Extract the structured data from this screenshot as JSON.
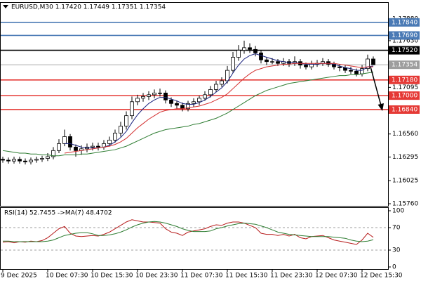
{
  "chart_data": [
    {
      "type": "candlestick",
      "title": "EURUSD,M30  1.17420 1.17449 1.17351 1.17354",
      "categories": [
        "9 Dec 2025",
        null,
        null,
        null,
        null,
        null,
        null,
        null,
        "10 Dec 07:30",
        null,
        null,
        null,
        null,
        null,
        null,
        null,
        "10 Dec 15:30",
        null,
        null,
        null,
        null,
        null,
        null,
        null,
        "10 Dec 23:30",
        null,
        null,
        null,
        null,
        null,
        null,
        null,
        "11 Dec 07:30",
        null,
        null,
        null,
        null,
        null,
        null,
        null,
        "11 Dec 15:30",
        null,
        null,
        null,
        null,
        null,
        null,
        null,
        "11 Dec 23:30",
        null,
        null,
        null,
        null,
        null,
        null,
        null,
        "12 Dec 07:30",
        null,
        null,
        null,
        null,
        null,
        null,
        null,
        "12 Dec 15:30",
        null,
        null
      ],
      "open": [
        1.1627,
        1.1626,
        1.1625,
        1.1627,
        1.1625,
        1.1624,
        1.1626,
        1.1627,
        1.1628,
        1.163,
        1.1637,
        1.1645,
        1.1653,
        1.1641,
        1.1637,
        1.1639,
        1.1641,
        1.1642,
        1.1641,
        1.1645,
        1.1649,
        1.1657,
        1.1665,
        1.1677,
        1.1693,
        1.1697,
        1.1699,
        1.1701,
        1.1703,
        1.1703,
        1.1695,
        1.1691,
        1.1689,
        1.1685,
        1.1691,
        1.1693,
        1.1697,
        1.1701,
        1.1707,
        1.1713,
        1.1717,
        1.1729,
        1.1744,
        1.1752,
        1.1755,
        1.1753,
        1.1749,
        1.1741,
        1.1739,
        1.1739,
        1.1737,
        1.1739,
        1.1737,
        1.1739,
        1.1735,
        1.1733,
        1.1736,
        1.1737,
        1.1739,
        1.1736,
        1.1733,
        1.1732,
        1.1729,
        1.1728,
        1.1725,
        1.1731,
        1.1742
      ],
      "high": [
        1.163,
        1.1629,
        1.163,
        1.163,
        1.1628,
        1.1629,
        1.163,
        1.1631,
        1.1634,
        1.1641,
        1.165,
        1.1661,
        1.1656,
        1.1644,
        1.1643,
        1.1645,
        1.1646,
        1.1646,
        1.1649,
        1.1653,
        1.1661,
        1.167,
        1.1682,
        1.1699,
        1.1701,
        1.1703,
        1.1705,
        1.1707,
        1.1708,
        1.1706,
        1.1698,
        1.1694,
        1.1692,
        1.1694,
        1.1697,
        1.17,
        1.1705,
        1.1711,
        1.1717,
        1.1721,
        1.1734,
        1.175,
        1.1758,
        1.1763,
        1.176,
        1.1757,
        1.1752,
        1.1744,
        1.1743,
        1.1742,
        1.1743,
        1.1742,
        1.1745,
        1.1742,
        1.1738,
        1.174,
        1.1741,
        1.1743,
        1.1742,
        1.1739,
        1.1736,
        1.1735,
        1.1733,
        1.1731,
        1.1735,
        1.1747,
        1.17449
      ],
      "low": [
        1.1623,
        1.1622,
        1.1622,
        1.1622,
        1.1621,
        1.1621,
        1.1623,
        1.1624,
        1.1625,
        1.1627,
        1.1634,
        1.1642,
        1.1637,
        1.163,
        1.1632,
        1.1635,
        1.1637,
        1.1637,
        1.1638,
        1.1642,
        1.1646,
        1.1653,
        1.1661,
        1.1673,
        1.1689,
        1.1693,
        1.1695,
        1.1697,
        1.1699,
        1.1691,
        1.1687,
        1.1685,
        1.1682,
        1.1682,
        1.1687,
        1.1689,
        1.1694,
        1.1698,
        1.1704,
        1.171,
        1.1714,
        1.1726,
        1.174,
        1.1748,
        1.1749,
        1.1745,
        1.1737,
        1.1735,
        1.1736,
        1.1734,
        1.1734,
        1.1733,
        1.1734,
        1.1731,
        1.173,
        1.173,
        1.1733,
        1.1734,
        1.1733,
        1.173,
        1.1728,
        1.1726,
        1.1725,
        1.1722,
        1.1722,
        1.1728,
        1.17351
      ],
      "close": [
        1.1626,
        1.1625,
        1.1627,
        1.1625,
        1.1624,
        1.1626,
        1.1627,
        1.1628,
        1.163,
        1.1637,
        1.1645,
        1.1653,
        1.1641,
        1.1637,
        1.1639,
        1.1641,
        1.1642,
        1.1641,
        1.1645,
        1.1649,
        1.1657,
        1.1665,
        1.1677,
        1.1693,
        1.1697,
        1.1699,
        1.1701,
        1.1703,
        1.1703,
        1.1695,
        1.1691,
        1.1689,
        1.1685,
        1.1691,
        1.1693,
        1.1697,
        1.1701,
        1.1707,
        1.1713,
        1.1717,
        1.1729,
        1.1744,
        1.1752,
        1.1755,
        1.1753,
        1.1749,
        1.1741,
        1.1739,
        1.1739,
        1.1737,
        1.1739,
        1.1737,
        1.1739,
        1.1735,
        1.1733,
        1.1736,
        1.1737,
        1.1739,
        1.1736,
        1.1733,
        1.1732,
        1.1729,
        1.1728,
        1.1725,
        1.1731,
        1.1742,
        1.17354
      ],
      "up_color": "#ffffff",
      "down_color": "#000000",
      "wick_color": "#000000",
      "series": [
        {
          "color": "#1a237e",
          "values": [
            null,
            null,
            null,
            null,
            null,
            null,
            null,
            null,
            null,
            null,
            null,
            1.1645,
            1.1645,
            1.1643,
            1.1641,
            1.164,
            1.164,
            1.164,
            1.1641,
            1.1643,
            1.1647,
            1.1652,
            1.1659,
            1.1669,
            1.1678,
            1.1685,
            1.1691,
            1.1695,
            1.1698,
            1.1698,
            1.1696,
            1.1694,
            1.1691,
            1.169,
            1.169,
            1.1692,
            1.1695,
            1.1699,
            1.1704,
            1.1709,
            1.1716,
            1.1726,
            1.1735,
            1.1742,
            1.1746,
            1.1748,
            1.1746,
            1.1744,
            1.1742,
            1.174,
            1.1739,
            1.1738,
            1.1738,
            1.1737,
            1.1736,
            1.1736,
            1.1736,
            1.1737,
            1.1737,
            1.1736,
            1.1734,
            1.1732,
            1.1731,
            1.1729,
            1.1729,
            1.1733,
            1.1734
          ]
        },
        {
          "color": "#d32f2f",
          "values": [
            null,
            null,
            null,
            null,
            null,
            null,
            null,
            null,
            null,
            null,
            null,
            1.1634,
            1.1635,
            1.1636,
            1.1637,
            1.1638,
            1.1639,
            1.164,
            1.1641,
            1.1642,
            1.1644,
            1.1647,
            1.1651,
            1.1657,
            1.1663,
            1.1668,
            1.1673,
            1.1677,
            1.1681,
            1.1683,
            1.1684,
            1.1685,
            1.1685,
            1.1686,
            1.1687,
            1.1688,
            1.169,
            1.1692,
            1.1695,
            1.1698,
            1.1702,
            1.1708,
            1.1714,
            1.172,
            1.1725,
            1.1729,
            1.1731,
            1.1733,
            1.1734,
            1.1735,
            1.1736,
            1.1736,
            1.1737,
            1.1737,
            1.1737,
            1.1737,
            1.1737,
            1.1737,
            1.1737,
            1.1737,
            1.1736,
            1.1735,
            1.1734,
            1.1733,
            1.1732,
            1.1733,
            1.1733
          ]
        },
        {
          "color": "#2e7d32",
          "values": [
            1.1637,
            1.1636,
            1.1635,
            1.1634,
            1.1634,
            1.1633,
            1.1633,
            1.1632,
            1.1632,
            1.1631,
            1.1631,
            1.1632,
            1.1632,
            1.1632,
            1.1633,
            1.1633,
            1.1634,
            1.1635,
            1.1636,
            1.1637,
            1.1638,
            1.164,
            1.1642,
            1.1645,
            1.1648,
            1.1651,
            1.1654,
            1.1657,
            1.1659,
            1.1661,
            1.1662,
            1.1663,
            1.1664,
            1.1665,
            1.1667,
            1.1668,
            1.167,
            1.1672,
            1.1674,
            1.1677,
            1.168,
            1.1684,
            1.1688,
            1.1692,
            1.1696,
            1.17,
            1.1703,
            1.1706,
            1.1708,
            1.171,
            1.1712,
            1.1714,
            1.1715,
            1.1716,
            1.1717,
            1.1718,
            1.1719,
            1.172,
            1.1721,
            1.1722,
            1.1723,
            1.1723,
            1.1724,
            1.1724,
            1.1725,
            1.1726,
            1.1727
          ]
        }
      ],
      "levels": [
        {
          "value": 1.1784,
          "label": "1.17840",
          "color": "#4a7ab5"
        },
        {
          "value": 1.1769,
          "label": "1.17690",
          "color": "#4a7ab5"
        },
        {
          "value": 1.1752,
          "label": "1.17520",
          "color": "#000000"
        },
        {
          "value": 1.17354,
          "label": "1.17354",
          "color": "#9e9e9e"
        },
        {
          "value": 1.1718,
          "label": "1.17180",
          "color": "#e53935"
        },
        {
          "value": 1.17,
          "label": "1.17000",
          "color": "#e53935"
        },
        {
          "value": 1.1684,
          "label": "1.16840",
          "color": "#e53935"
        }
      ],
      "ylim": [
        1.1574,
        1.18
      ],
      "yticks": [
        {
          "value": 1.1788,
          "label": "1.17880"
        },
        {
          "value": 1.1763,
          "label": "1.17630"
        },
        {
          "value": 1.17095,
          "label": "1.17095"
        },
        {
          "value": 1.1656,
          "label": "1.16560"
        },
        {
          "value": 1.16295,
          "label": "1.16295"
        },
        {
          "value": 1.16025,
          "label": "1.16025"
        },
        {
          "value": 1.1576,
          "label": "1.15760"
        }
      ]
    },
    {
      "type": "line",
      "title": "RSI(14) 52.7455 ->MA(7) 48.4702",
      "series": [
        {
          "color": "#b71c1c",
          "values": [
            44,
            45,
            43,
            45,
            44,
            46,
            45,
            47,
            52,
            60,
            68,
            72,
            60,
            55,
            54,
            55,
            56,
            55,
            58,
            62,
            68,
            74,
            80,
            84,
            82,
            80,
            80,
            79,
            78,
            68,
            62,
            60,
            56,
            62,
            64,
            66,
            68,
            72,
            75,
            74,
            78,
            80,
            80,
            78,
            74,
            70,
            60,
            58,
            58,
            56,
            58,
            55,
            58,
            52,
            50,
            54,
            55,
            56,
            52,
            48,
            46,
            44,
            42,
            40,
            48,
            60,
            52.7455
          ]
        },
        {
          "color": "#2e7d32",
          "values": [
            46,
            46,
            45,
            45,
            45,
            45,
            45,
            45,
            46,
            48,
            52,
            56,
            58,
            60,
            61,
            61,
            59,
            56,
            56,
            57,
            59,
            62,
            66,
            71,
            75,
            78,
            80,
            81,
            80,
            78,
            75,
            72,
            68,
            65,
            63,
            63,
            63,
            64,
            68,
            70,
            73,
            75,
            77,
            78,
            77,
            76,
            73,
            70,
            66,
            62,
            60,
            58,
            57,
            56,
            55,
            54,
            54,
            54,
            54,
            53,
            52,
            51,
            48,
            46,
            45,
            46,
            48.4702
          ]
        }
      ],
      "levels": [
        70,
        30
      ],
      "ylim": [
        0,
        100
      ],
      "yticks": [
        100,
        70,
        30,
        0
      ]
    }
  ]
}
